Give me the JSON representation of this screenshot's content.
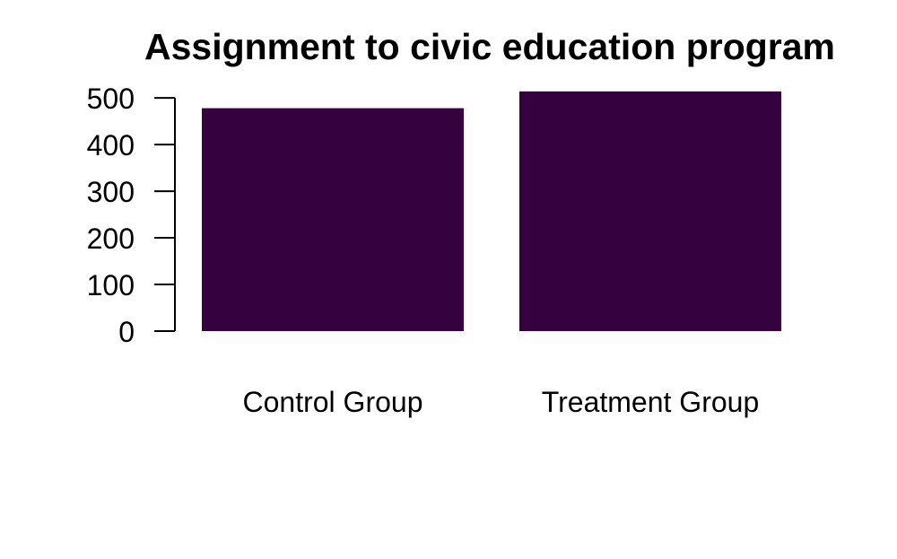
{
  "chart_data": {
    "type": "bar",
    "title": "Assignment to civic education program",
    "xlabel": "",
    "ylabel": "",
    "categories": [
      "Control Group",
      "Treatment Group"
    ],
    "values": [
      478,
      514
    ],
    "yticks": [
      0,
      100,
      200,
      300,
      400,
      500
    ],
    "ytick_labels": [
      "0",
      "100",
      "200",
      "300",
      "400",
      "500"
    ],
    "ylim": [
      0,
      514
    ],
    "grid": false,
    "legend": "none",
    "bar_color": "#36013F"
  }
}
